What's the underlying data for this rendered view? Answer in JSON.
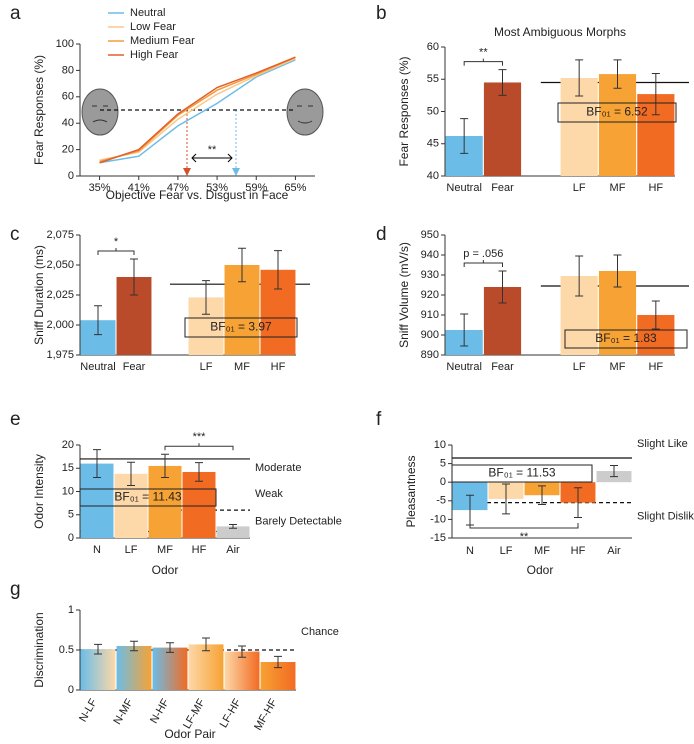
{
  "chart_data": [
    {
      "type": "line",
      "label": "a",
      "ylabel": "Fear Responses (%)",
      "xlabel": "Objective Fear vs. Disgust in Face",
      "categories": [
        "35%",
        "41%",
        "47%",
        "53%",
        "59%",
        "65%"
      ],
      "ylim": [
        0,
        100
      ],
      "yticks": [
        0,
        20,
        40,
        60,
        80,
        100
      ],
      "series": [
        {
          "name": "Neutral",
          "color": "#6bbde8",
          "values": [
            10,
            15,
            38,
            55,
            75,
            88
          ]
        },
        {
          "name": "Low Fear",
          "color": "#fbc88a",
          "values": [
            12,
            18,
            43,
            62,
            76,
            89
          ]
        },
        {
          "name": "Medium Fear",
          "color": "#f39a3c",
          "values": [
            11,
            19,
            46,
            65,
            77,
            90
          ]
        },
        {
          "name": "High Fear",
          "color": "#e0602a",
          "values": [
            10,
            20,
            47,
            67,
            78,
            90
          ]
        }
      ],
      "reference_lines": [
        {
          "value": 50,
          "style": "dashed"
        }
      ],
      "annotations": [
        "**"
      ]
    },
    {
      "type": "bar",
      "label": "b",
      "title": "Most Ambiguous Morphs",
      "ylabel": "Fear Responses (%)",
      "categories": [
        "Neutral",
        "Fear",
        "LF",
        "MF",
        "HF"
      ],
      "values": [
        46.2,
        54.5,
        55.2,
        55.8,
        52.7
      ],
      "errors": [
        2.7,
        2,
        2.8,
        2.2,
        3.2
      ],
      "colors": [
        "#6bbde8",
        "#b94a2a",
        "#fdd8a8",
        "#f7a234",
        "#f26b22"
      ],
      "ylim": [
        40,
        60
      ],
      "yticks": [
        40,
        45,
        50,
        55,
        60
      ],
      "reference_lines": [
        {
          "value": 54.5,
          "style": "solid"
        }
      ],
      "significance": [
        {
          "between": [
            0,
            1
          ],
          "text": "**"
        }
      ],
      "bf": "BF₀₁ = 6.52"
    },
    {
      "type": "bar",
      "label": "c",
      "ylabel": "Sniff Duration (ms)",
      "categories": [
        "Neutral",
        "Fear",
        "LF",
        "MF",
        "HF"
      ],
      "values": [
        2004,
        2040,
        2023,
        2050,
        2046
      ],
      "errors": [
        12,
        15,
        14,
        14,
        16
      ],
      "colors": [
        "#6bbde8",
        "#b94a2a",
        "#fdd8a8",
        "#f7a234",
        "#f26b22"
      ],
      "ylim": [
        1975,
        2075
      ],
      "yticks": [
        {
          "value": 1975,
          "label": "1,975"
        },
        {
          "value": 2000,
          "label": "2,000"
        },
        {
          "value": 2025,
          "label": "2,025"
        },
        {
          "value": 2050,
          "label": "2,050"
        },
        {
          "value": 2075,
          "label": "2,075"
        }
      ],
      "reference_lines": [
        {
          "value": 2034,
          "style": "solid"
        }
      ],
      "significance": [
        {
          "between": [
            0,
            1
          ],
          "text": "*"
        }
      ],
      "bf": "BF₀₁ = 3.97"
    },
    {
      "type": "bar",
      "label": "d",
      "ylabel": "Sniff Volume (mV/s)",
      "categories": [
        "Neutral",
        "Fear",
        "LF",
        "MF",
        "HF"
      ],
      "values": [
        902.5,
        924,
        929.5,
        932,
        910
      ],
      "errors": [
        8,
        8,
        10,
        8,
        7
      ],
      "colors": [
        "#6bbde8",
        "#b94a2a",
        "#fdd8a8",
        "#f7a234",
        "#f26b22"
      ],
      "ylim": [
        890,
        950
      ],
      "yticks": [
        890,
        900,
        910,
        920,
        930,
        940,
        950
      ],
      "reference_lines": [
        {
          "value": 924.5,
          "style": "solid"
        }
      ],
      "significance": [
        {
          "between": [
            0,
            1
          ],
          "text": "p = .056"
        }
      ],
      "bf": "BF₀₁ = 1.83"
    },
    {
      "type": "bar",
      "label": "e",
      "ylabel": "Odor Intensity",
      "xlabel": "Odor",
      "categories": [
        "N",
        "LF",
        "MF",
        "HF",
        "Air"
      ],
      "values": [
        16,
        13.8,
        15.5,
        14.2,
        2.5
      ],
      "errors": [
        3,
        2.5,
        2.5,
        2,
        0.4
      ],
      "colors": [
        "#6bbde8",
        "#fdd8a8",
        "#f7a234",
        "#f26b22",
        "#cccccc"
      ],
      "ylim": [
        0,
        20
      ],
      "yticks": [
        0,
        5,
        10,
        15,
        20
      ],
      "reference_lines": [
        {
          "value": 17,
          "style": "solid",
          "label": "Moderate"
        },
        {
          "value": 6,
          "style": "dashed",
          "label": "Weak"
        },
        {
          "value": 1.4,
          "style": "dotted",
          "label": "Barely Detectable"
        }
      ],
      "significance": [
        {
          "between": [
            2,
            4
          ],
          "text": "***"
        }
      ],
      "bf": "BF₀₁ = 11.43"
    },
    {
      "type": "bar",
      "label": "f",
      "ylabel": "Pleasantness",
      "xlabel": "Odor",
      "categories": [
        "N",
        "LF",
        "MF",
        "HF",
        "Air"
      ],
      "values": [
        -7.5,
        -4.5,
        -3.5,
        -5.5,
        3
      ],
      "errors": [
        4,
        4,
        2.5,
        4,
        1.5
      ],
      "colors": [
        "#6bbde8",
        "#fdd8a8",
        "#f7a234",
        "#f26b22",
        "#cccccc"
      ],
      "ylim": [
        -15,
        10
      ],
      "yticks": [
        -15,
        -10,
        -5,
        0,
        5,
        10
      ],
      "reference_lines": [
        {
          "value": 6.5,
          "style": "solid",
          "label": "Slight Like"
        },
        {
          "value": -5.5,
          "style": "dashed",
          "label": "Slight Dislike"
        }
      ],
      "significance": [
        {
          "between": [
            0,
            3
          ],
          "text": "**"
        }
      ],
      "bf": "BF₀₁ = 11.53"
    },
    {
      "type": "bar",
      "label": "g",
      "ylabel": "Discrimination",
      "xlabel": "Odor Pair",
      "categories": [
        "N-LF",
        "N-MF",
        "N-HF",
        "LF-MF",
        "LF-HF",
        "MF-HF"
      ],
      "values": [
        0.51,
        0.55,
        0.53,
        0.57,
        0.48,
        0.35
      ],
      "errors": [
        0.06,
        0.06,
        0.06,
        0.08,
        0.07,
        0.07
      ],
      "colors": [
        [
          "#6bbde8",
          "#fdd8a8"
        ],
        [
          "#6bbde8",
          "#f7a234"
        ],
        [
          "#6bbde8",
          "#f26b22"
        ],
        [
          "#fdd8a8",
          "#f7a234"
        ],
        [
          "#fdd8a8",
          "#f26b22"
        ],
        [
          "#f7a234",
          "#f26b22"
        ]
      ],
      "ylim": [
        0,
        1
      ],
      "yticks": [
        0,
        0.5,
        1
      ],
      "reference_lines": [
        {
          "value": 0.5,
          "style": "dashed",
          "label": "Chance"
        }
      ]
    }
  ]
}
